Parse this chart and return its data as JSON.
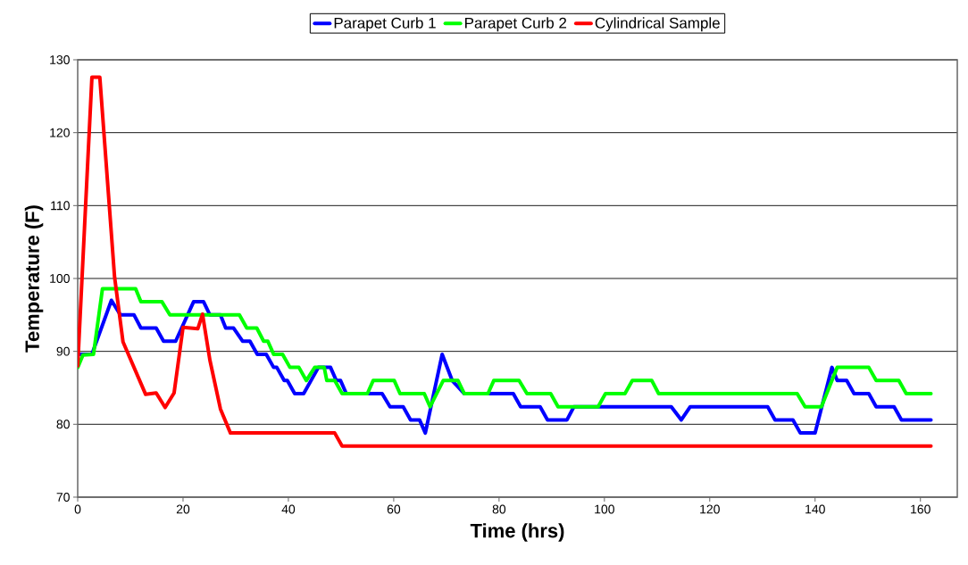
{
  "chart_data": {
    "type": "line",
    "xlabel": "Time (hrs)",
    "ylabel": "Temperature (F)",
    "xlim": [
      0,
      167
    ],
    "ylim": [
      70,
      130
    ],
    "xticks": [
      0,
      20,
      40,
      60,
      80,
      100,
      120,
      140,
      160
    ],
    "yticks": [
      70,
      80,
      90,
      100,
      110,
      120,
      130
    ],
    "grid": "y",
    "legend": "top",
    "marker": "none",
    "line_style": "solid",
    "series": [
      {
        "name": "Parapet Curb 1",
        "color": "#0000ff",
        "x": [
          0,
          2.7,
          6.4,
          8.1,
          10.7,
          12,
          14.9,
          16.3,
          18.6,
          22,
          23.9,
          25.1,
          27.1,
          28.1,
          29.6,
          31.3,
          32.7,
          34.1,
          35.8,
          37.2,
          37.8,
          39.2,
          39.8,
          41.2,
          42.9,
          45.7,
          48,
          49.1,
          49.9,
          51,
          57.8,
          59.3,
          61.8,
          63.2,
          64.9,
          66,
          69.2,
          71.1,
          73.4,
          82.7,
          84.1,
          87.8,
          89.2,
          92.9,
          94.2,
          112.7,
          114.6,
          116.3,
          131,
          132.4,
          135.8,
          137.2,
          140,
          143.2,
          144.2,
          146,
          147.4,
          150.2,
          151.6,
          155,
          156.4,
          162
        ],
        "values": [
          89.6,
          89.6,
          97,
          95,
          95,
          93.2,
          93.2,
          91.4,
          91.4,
          96.8,
          96.8,
          95,
          95,
          93.2,
          93.2,
          91.4,
          91.4,
          89.6,
          89.6,
          87.8,
          87.8,
          86,
          86,
          84.2,
          84.2,
          87.8,
          87.8,
          86,
          86,
          84.2,
          84.2,
          82.4,
          82.4,
          80.6,
          80.6,
          78.8,
          89.6,
          86,
          84.2,
          84.2,
          82.4,
          82.4,
          80.6,
          80.6,
          82.4,
          82.4,
          80.6,
          82.4,
          82.4,
          80.6,
          80.6,
          78.8,
          78.8,
          87.8,
          86,
          86,
          84.2,
          84.2,
          82.4,
          82.4,
          80.6,
          80.6
        ]
      },
      {
        "name": "Parapet Curb 2",
        "color": "#00ff00",
        "x": [
          0,
          1,
          3,
          4.7,
          11,
          12,
          16,
          17.5,
          30.7,
          32.1,
          34,
          35.3,
          36.1,
          37.2,
          38.9,
          40.3,
          42,
          43.4,
          45,
          46.8,
          47.3,
          48.8,
          50.2,
          55,
          56.1,
          60.1,
          61.2,
          65.8,
          66.9,
          69.4,
          72.2,
          73.4,
          77.9,
          79,
          83.8,
          85.3,
          89.8,
          91.2,
          98.8,
          100.2,
          103.9,
          105.3,
          109,
          110.3,
          136.6,
          138.1,
          141.2,
          144.2,
          150.2,
          151.6,
          155.9,
          157.3,
          162
        ],
        "values": [
          87.8,
          89.5,
          89.6,
          98.6,
          98.6,
          96.8,
          96.8,
          95,
          95,
          93.2,
          93.2,
          91.4,
          91.4,
          89.6,
          89.6,
          87.8,
          87.8,
          86,
          87.8,
          87.8,
          86,
          86,
          84.2,
          84.2,
          86,
          86,
          84.2,
          84.2,
          82.4,
          86,
          86,
          84.2,
          84.2,
          86,
          86,
          84.2,
          84.2,
          82.4,
          82.4,
          84.2,
          84.2,
          86,
          86,
          84.2,
          84.2,
          82.4,
          82.4,
          87.8,
          87.8,
          86,
          86,
          84.2,
          84.2
        ]
      },
      {
        "name": "Cylindrical Sample",
        "color": "#ff0000",
        "x": [
          0,
          2.7,
          4.2,
          7,
          8.6,
          12.9,
          14.9,
          16.6,
          18.3,
          20,
          22.8,
          23.7,
          25.1,
          27.1,
          29,
          48.8,
          50.2,
          162
        ],
        "values": [
          88,
          127.6,
          127.6,
          100.2,
          91.3,
          84.1,
          84.3,
          82.3,
          84.3,
          93.3,
          93.1,
          95.1,
          88.8,
          82.1,
          78.8,
          78.8,
          77,
          77
        ]
      }
    ]
  }
}
